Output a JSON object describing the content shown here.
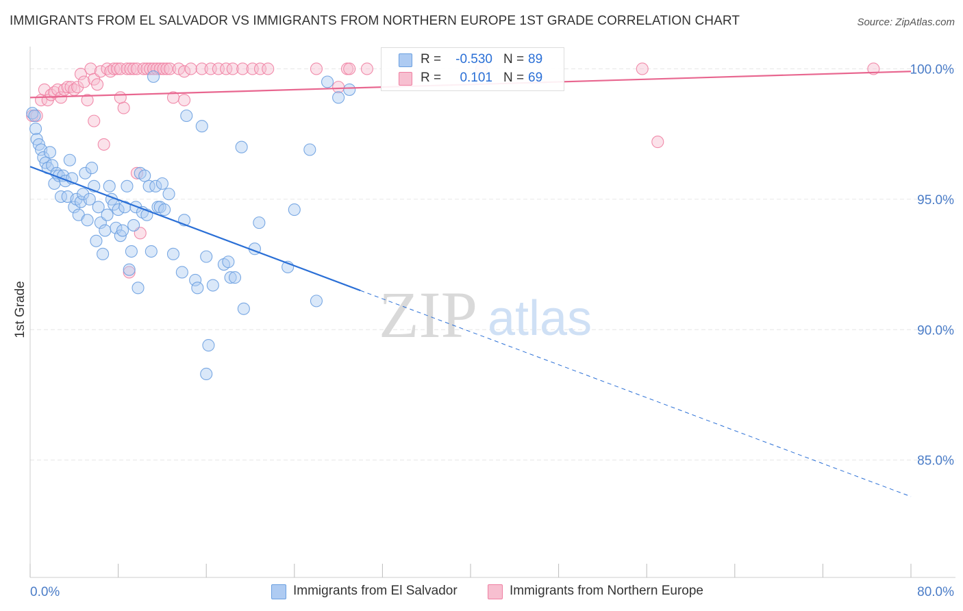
{
  "title": "IMMIGRANTS FROM EL SALVADOR VS IMMIGRANTS FROM NORTHERN EUROPE 1ST GRADE CORRELATION CHART",
  "source": "Source: ZipAtlas.com",
  "watermark": {
    "zip": "ZIP",
    "atlas": "atlas"
  },
  "colors": {
    "blue": "#6a9fe0",
    "blue_fill": "#aecbf2",
    "blue_line": "#2a6fd6",
    "pink": "#ef7fa2",
    "pink_fill": "#f7bfd0",
    "pink_line": "#e8668f",
    "tick_label": "#4a7cc7",
    "grid": "#e6e6e6"
  },
  "legend": {
    "rows": [
      {
        "r_label": "R =",
        "r_value": "-0.530",
        "n_label": "N =",
        "n_value": "89",
        "series": "blue"
      },
      {
        "r_label": "R =",
        "r_value": "0.101",
        "n_label": "N =",
        "n_value": "69",
        "series": "pink"
      }
    ]
  },
  "bottom_legend": [
    {
      "label": "Immigrants from El Salvador",
      "series": "blue"
    },
    {
      "label": "Immigrants from Northern Europe",
      "series": "pink"
    }
  ],
  "chart_data": {
    "type": "scatter",
    "title": "IMMIGRANTS FROM EL SALVADOR VS IMMIGRANTS FROM NORTHERN EUROPE 1ST GRADE CORRELATION CHART",
    "xlabel": "",
    "ylabel": "1st Grade",
    "xlim": [
      0,
      80
    ],
    "ylim": [
      80.5,
      100.8
    ],
    "x_tick_labels": [
      {
        "value": 0,
        "label": "0.0%"
      },
      {
        "value": 80,
        "label": "80.0%"
      }
    ],
    "y_tick_labels": [
      {
        "value": 100,
        "label": "100.0%"
      },
      {
        "value": 95,
        "label": "95.0%"
      },
      {
        "value": 90,
        "label": "90.0%"
      },
      {
        "value": 85,
        "label": "85.0%"
      }
    ],
    "series": [
      {
        "name": "Immigrants from El Salvador",
        "color": "blue",
        "R": -0.53,
        "N": 89,
        "trend": {
          "x0": 0,
          "y0": 96.25,
          "x1": 30,
          "y1": 91.5,
          "dash_to_x": 80,
          "dash_to_y": 83.6
        },
        "points": [
          [
            0.2,
            98.3
          ],
          [
            0.4,
            98.2
          ],
          [
            0.5,
            97.7
          ],
          [
            0.6,
            97.3
          ],
          [
            0.8,
            97.1
          ],
          [
            1.0,
            96.9
          ],
          [
            1.2,
            96.6
          ],
          [
            1.4,
            96.4
          ],
          [
            1.6,
            96.2
          ],
          [
            1.8,
            96.8
          ],
          [
            2.0,
            96.3
          ],
          [
            2.2,
            95.6
          ],
          [
            2.4,
            96.0
          ],
          [
            2.6,
            95.9
          ],
          [
            2.8,
            95.1
          ],
          [
            3.0,
            95.9
          ],
          [
            3.2,
            95.7
          ],
          [
            3.4,
            95.1
          ],
          [
            3.6,
            96.5
          ],
          [
            3.8,
            95.8
          ],
          [
            4.0,
            94.7
          ],
          [
            4.2,
            95.0
          ],
          [
            4.4,
            94.4
          ],
          [
            4.6,
            94.9
          ],
          [
            4.8,
            95.2
          ],
          [
            5.0,
            96.0
          ],
          [
            5.2,
            94.2
          ],
          [
            5.4,
            95.0
          ],
          [
            5.6,
            96.2
          ],
          [
            5.8,
            95.5
          ],
          [
            6.0,
            93.4
          ],
          [
            6.2,
            94.7
          ],
          [
            6.4,
            94.1
          ],
          [
            6.6,
            92.9
          ],
          [
            6.8,
            93.8
          ],
          [
            7.0,
            94.4
          ],
          [
            7.2,
            95.5
          ],
          [
            7.4,
            95.0
          ],
          [
            7.6,
            94.8
          ],
          [
            7.8,
            93.9
          ],
          [
            8.0,
            94.6
          ],
          [
            8.2,
            93.6
          ],
          [
            8.4,
            93.8
          ],
          [
            8.6,
            94.7
          ],
          [
            8.8,
            95.5
          ],
          [
            9.0,
            92.3
          ],
          [
            9.2,
            93.0
          ],
          [
            9.4,
            94.0
          ],
          [
            9.6,
            94.7
          ],
          [
            9.8,
            91.6
          ],
          [
            10.0,
            96.0
          ],
          [
            10.2,
            94.5
          ],
          [
            10.4,
            95.9
          ],
          [
            10.6,
            94.4
          ],
          [
            10.8,
            95.5
          ],
          [
            11.0,
            93.0
          ],
          [
            11.2,
            99.7
          ],
          [
            11.4,
            95.5
          ],
          [
            11.6,
            94.7
          ],
          [
            11.8,
            94.7
          ],
          [
            12.0,
            95.6
          ],
          [
            12.2,
            94.6
          ],
          [
            12.6,
            95.2
          ],
          [
            13.0,
            92.9
          ],
          [
            13.8,
            92.2
          ],
          [
            14.0,
            94.2
          ],
          [
            14.2,
            98.2
          ],
          [
            15.0,
            91.9
          ],
          [
            15.2,
            91.6
          ],
          [
            15.6,
            97.8
          ],
          [
            16.0,
            92.8
          ],
          [
            16.2,
            89.4
          ],
          [
            16.0,
            88.3
          ],
          [
            16.6,
            91.7
          ],
          [
            17.6,
            92.5
          ],
          [
            18.0,
            92.6
          ],
          [
            18.2,
            92.0
          ],
          [
            18.6,
            92.0
          ],
          [
            19.2,
            97.0
          ],
          [
            19.4,
            90.8
          ],
          [
            20.4,
            93.1
          ],
          [
            20.8,
            94.1
          ],
          [
            23.4,
            92.4
          ],
          [
            24.0,
            94.6
          ],
          [
            25.4,
            96.9
          ],
          [
            26.0,
            91.1
          ],
          [
            27.0,
            99.5
          ],
          [
            28.0,
            98.9
          ],
          [
            29.0,
            99.2
          ]
        ]
      },
      {
        "name": "Immigrants from Northern Europe",
        "color": "pink",
        "R": 0.101,
        "N": 69,
        "trend": {
          "x0": 0,
          "y0": 98.9,
          "x1": 80,
          "y1": 99.9
        },
        "points": [
          [
            0.2,
            98.2
          ],
          [
            0.6,
            98.2
          ],
          [
            1.0,
            98.8
          ],
          [
            1.3,
            99.2
          ],
          [
            1.6,
            98.8
          ],
          [
            1.9,
            99.0
          ],
          [
            2.2,
            99.1
          ],
          [
            2.5,
            99.2
          ],
          [
            2.8,
            98.9
          ],
          [
            3.1,
            99.2
          ],
          [
            3.4,
            99.3
          ],
          [
            3.7,
            99.3
          ],
          [
            4.0,
            99.2
          ],
          [
            4.3,
            99.3
          ],
          [
            4.6,
            99.8
          ],
          [
            4.9,
            99.5
          ],
          [
            5.2,
            98.8
          ],
          [
            5.5,
            100.0
          ],
          [
            5.8,
            99.6
          ],
          [
            6.1,
            99.4
          ],
          [
            6.4,
            99.9
          ],
          [
            6.7,
            97.1
          ],
          [
            7.0,
            100.0
          ],
          [
            7.3,
            99.9
          ],
          [
            7.6,
            100.0
          ],
          [
            7.9,
            100.0
          ],
          [
            8.2,
            100.0
          ],
          [
            8.5,
            98.5
          ],
          [
            8.8,
            100.0
          ],
          [
            9.1,
            100.0
          ],
          [
            9.4,
            100.0
          ],
          [
            9.7,
            100.0
          ],
          [
            10.0,
            93.7
          ],
          [
            10.3,
            100.0
          ],
          [
            10.6,
            100.0
          ],
          [
            10.9,
            100.0
          ],
          [
            11.2,
            100.0
          ],
          [
            11.5,
            100.0
          ],
          [
            11.8,
            100.0
          ],
          [
            12.1,
            100.0
          ],
          [
            12.4,
            100.0
          ],
          [
            12.7,
            100.0
          ],
          [
            13.5,
            100.0
          ],
          [
            14.0,
            99.9
          ],
          [
            14.6,
            100.0
          ],
          [
            15.6,
            100.0
          ],
          [
            16.4,
            100.0
          ],
          [
            17.1,
            100.0
          ],
          [
            17.8,
            100.0
          ],
          [
            18.4,
            100.0
          ],
          [
            19.3,
            100.0
          ],
          [
            20.2,
            100.0
          ],
          [
            20.9,
            100.0
          ],
          [
            21.6,
            100.0
          ],
          [
            26.0,
            100.0
          ],
          [
            28.0,
            99.3
          ],
          [
            28.8,
            100.0
          ],
          [
            29.0,
            100.0
          ],
          [
            30.6,
            100.0
          ],
          [
            41.0,
            100.0
          ],
          [
            57.0,
            97.2
          ],
          [
            55.6,
            100.0
          ],
          [
            76.6,
            100.0
          ],
          [
            9.7,
            96.0
          ],
          [
            14.0,
            98.8
          ],
          [
            13.0,
            98.9
          ],
          [
            8.2,
            98.9
          ],
          [
            5.8,
            98.0
          ],
          [
            9.0,
            92.2
          ]
        ]
      }
    ]
  }
}
